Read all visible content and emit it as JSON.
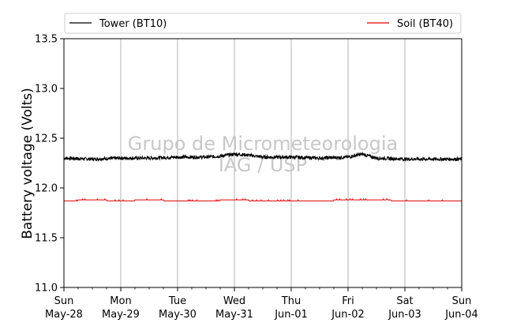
{
  "chart_data": {
    "type": "line",
    "ylabel": "Battery voltage (Volts)",
    "ylim": [
      11.0,
      13.5
    ],
    "yticks": [
      "11.0",
      "11.5",
      "12.0",
      "12.5",
      "13.0",
      "13.5"
    ],
    "xlim": [
      "2017-05-28",
      "2017-06-04"
    ],
    "xticks": [
      {
        "day": "Sun",
        "date": "May-28"
      },
      {
        "day": "Mon",
        "date": "May-29"
      },
      {
        "day": "Tue",
        "date": "May-30"
      },
      {
        "day": "Wed",
        "date": "May-31"
      },
      {
        "day": "Thu",
        "date": "Jun-01"
      },
      {
        "day": "Fri",
        "date": "Jun-02"
      },
      {
        "day": "Sat",
        "date": "Jun-03"
      },
      {
        "day": "Sun",
        "date": "Jun-04"
      }
    ],
    "grid": "vertical",
    "legend_position": "top",
    "series": [
      {
        "name": "Tower (BT10)",
        "color": "#000000",
        "x": [
          "2017-05-28 00:00",
          "2017-05-28 12:00",
          "2017-05-29 00:00",
          "2017-05-29 12:00",
          "2017-05-30 00:00",
          "2017-05-30 12:00",
          "2017-05-30 18:00",
          "2017-05-31 00:00",
          "2017-05-31 06:00",
          "2017-05-31 12:00",
          "2017-06-01 00:00",
          "2017-06-01 12:00",
          "2017-06-02 00:00",
          "2017-06-02 06:00",
          "2017-06-02 12:00",
          "2017-06-03 00:00",
          "2017-06-03 12:00",
          "2017-06-04 00:00"
        ],
        "y": [
          12.3,
          12.29,
          12.3,
          12.3,
          12.31,
          12.31,
          12.32,
          12.34,
          12.33,
          12.31,
          12.31,
          12.3,
          12.31,
          12.34,
          12.3,
          12.29,
          12.29,
          12.29
        ]
      },
      {
        "name": "Soil (BT40)",
        "color": "#e00000",
        "x": [
          "2017-05-28 00:00",
          "2017-05-28 12:00",
          "2017-05-29 00:00",
          "2017-05-29 12:00",
          "2017-05-30 00:00",
          "2017-05-30 12:00",
          "2017-05-31 00:00",
          "2017-05-31 12:00",
          "2017-06-01 00:00",
          "2017-06-01 12:00",
          "2017-06-02 00:00",
          "2017-06-02 12:00",
          "2017-06-03 00:00",
          "2017-06-03 12:00",
          "2017-06-04 00:00"
        ],
        "y": [
          11.87,
          11.88,
          11.87,
          11.88,
          11.87,
          11.87,
          11.88,
          11.87,
          11.87,
          11.87,
          11.88,
          11.88,
          11.87,
          11.87,
          11.87
        ]
      }
    ],
    "watermark": [
      "Grupo de Micrometeorologia",
      "IAG / USP"
    ]
  },
  "colors": {
    "grid": "#b0b0b0",
    "watermark": "#c8c8c8"
  }
}
